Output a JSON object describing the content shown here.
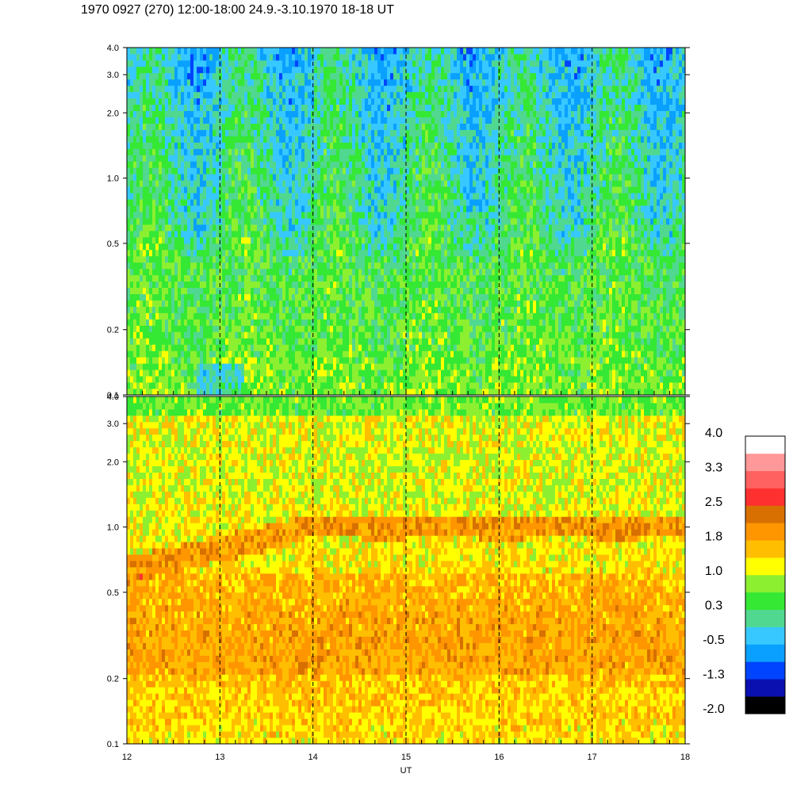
{
  "title": "1970 0927 (270) 12:00-18:00 24.9.-3.10.1970  18-18 UT",
  "chart_data": [
    {
      "type": "heatmap",
      "panel": "top",
      "x_range": [
        12,
        18
      ],
      "y_scale": "log",
      "y_range": [
        0.1,
        4.0
      ],
      "y_tick_labels": [
        "0.1",
        "0.2",
        "0.5",
        "1.0",
        "2.0",
        "3.0",
        "4.0"
      ],
      "x_tick_labels": [
        "12",
        "13",
        "14",
        "15",
        "16",
        "17",
        "18"
      ],
      "hour_markers": [
        13,
        14,
        15,
        16,
        17
      ],
      "dominant_levels": "green to blue at upper frequencies, green/yellow-green below 0.5"
    },
    {
      "type": "heatmap",
      "panel": "bottom",
      "x_range": [
        12,
        18
      ],
      "y_scale": "log",
      "y_range": [
        0.1,
        4.0
      ],
      "y_tick_labels": [
        "0.1",
        "0.2",
        "0.5",
        "1.0",
        "2.0",
        "3.0",
        "4.0"
      ],
      "x_tick_labels": [
        "12",
        "13",
        "14",
        "15",
        "16",
        "17",
        "18"
      ],
      "xlabel": "UT",
      "hour_markers": [
        13,
        14,
        15,
        16,
        17
      ],
      "ridge_level": 1.0,
      "dominant_levels": "yellow/orange, orange band near 1.0 from 14 UT onward"
    }
  ],
  "colorbar": {
    "labels": [
      "4.0",
      "3.3",
      "2.5",
      "1.8",
      "1.0",
      "0.3",
      "-0.5",
      "-1.3",
      "-2.0"
    ],
    "colors": [
      "#000000",
      "#0a10b0",
      "#0044ff",
      "#0aa0ff",
      "#36c8ff",
      "#50d890",
      "#34e834",
      "#8cf030",
      "#ffff00",
      "#ffbe00",
      "#ff9600",
      "#d77000",
      "#ff3030",
      "#ff6060",
      "#ff9898",
      "#ffffff"
    ]
  }
}
